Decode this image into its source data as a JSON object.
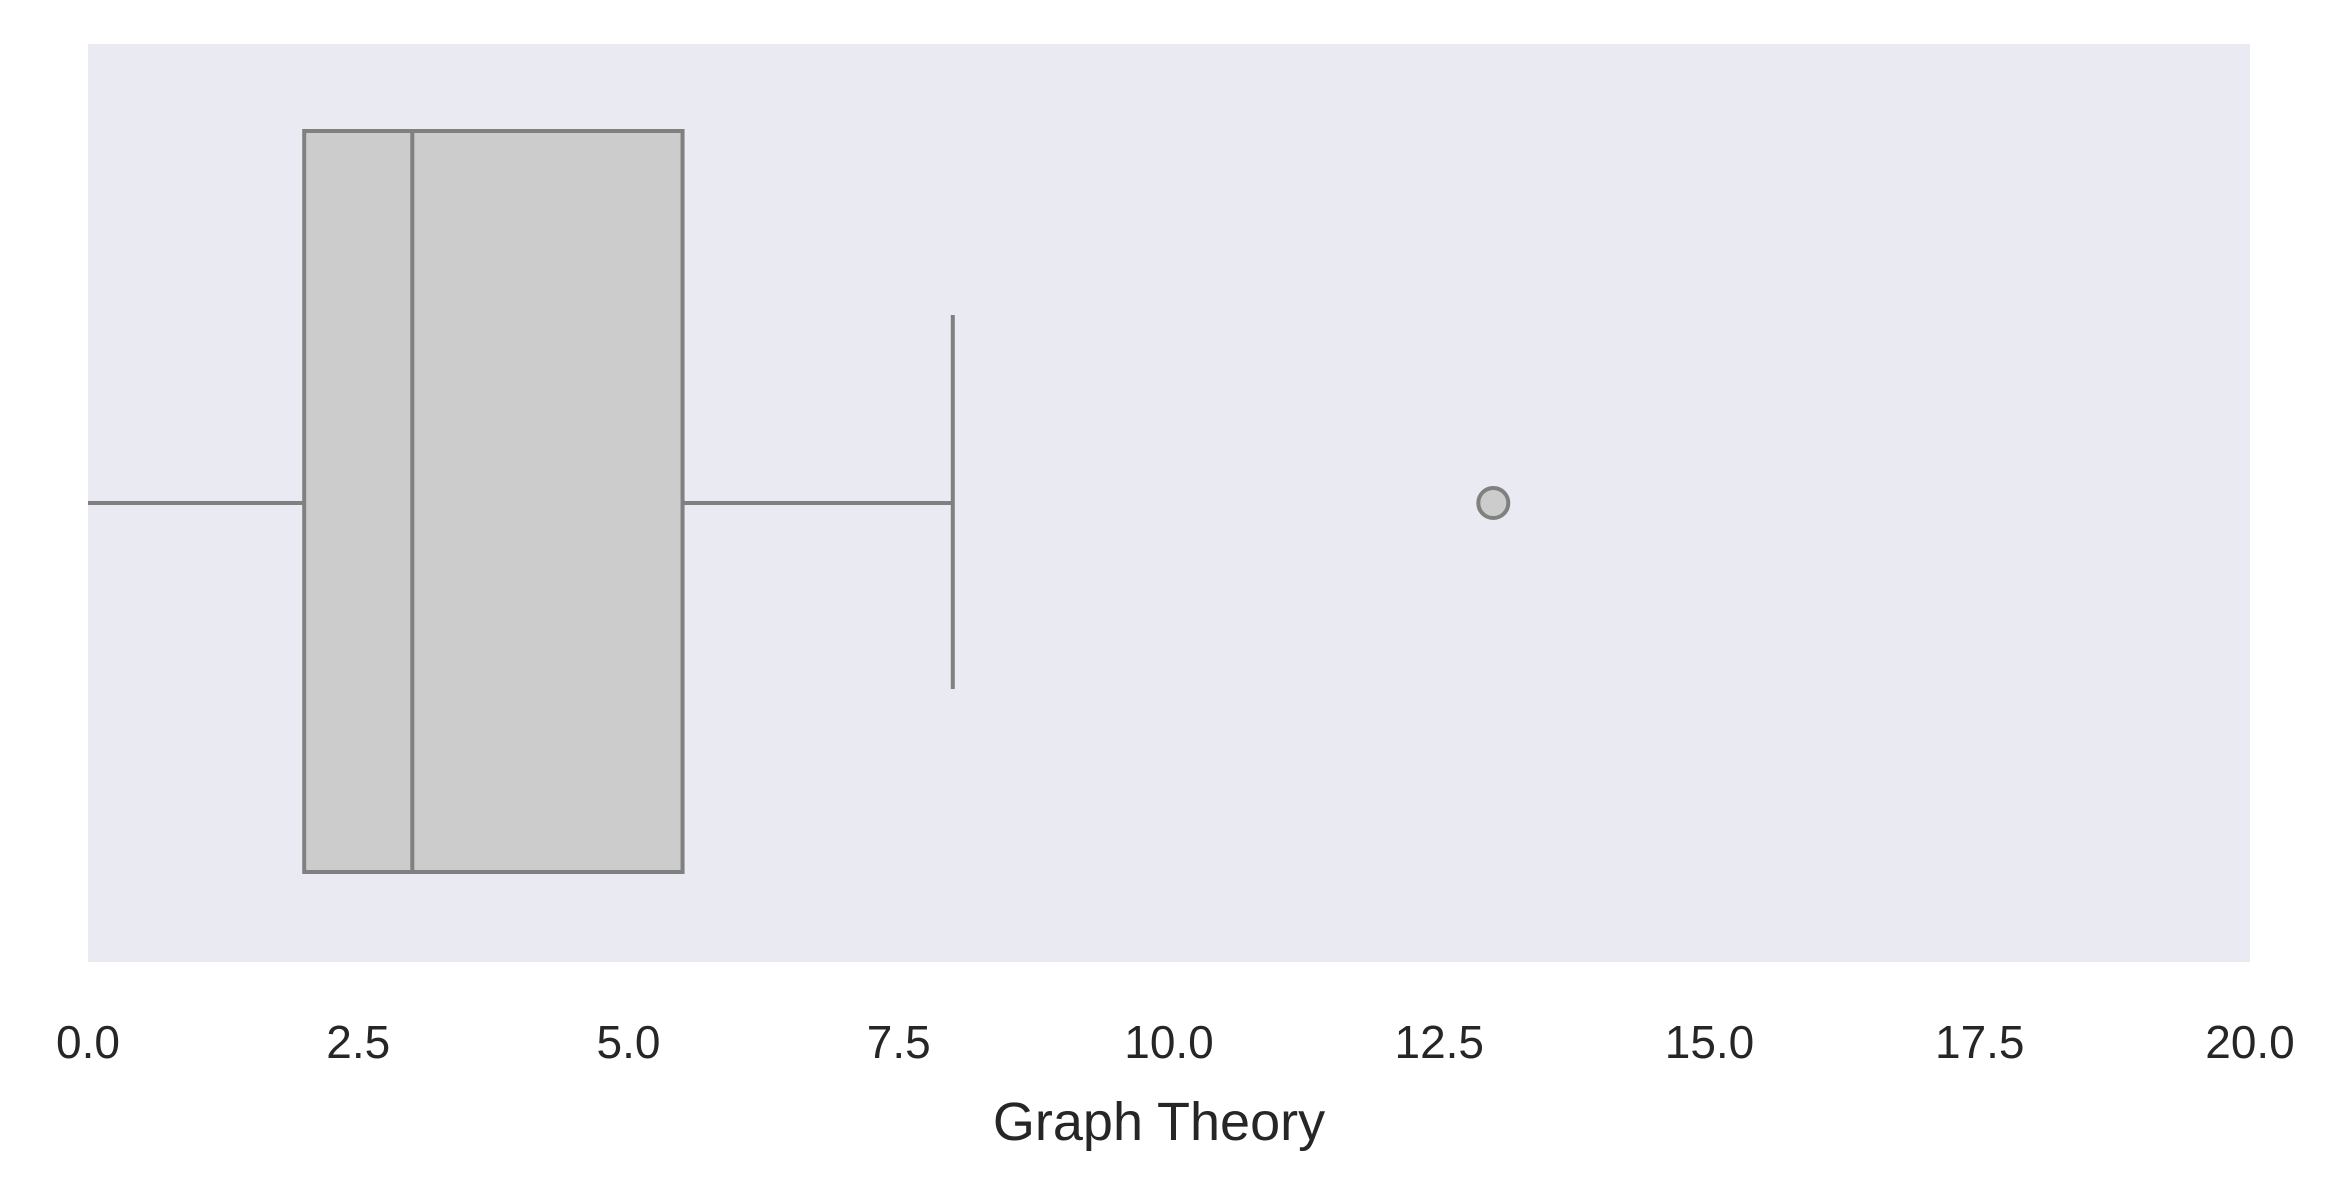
{
  "chart_data": {
    "type": "boxplot",
    "orientation": "horizontal",
    "xlabel": "Graph Theory",
    "ylabel": "",
    "title": "",
    "xlim": [
      0,
      20
    ],
    "xticks": [
      0,
      2.5,
      5,
      7.5,
      10,
      12.5,
      15,
      17.5,
      20
    ],
    "xtick_labels": [
      "0.0",
      "2.5",
      "5.0",
      "7.5",
      "10.0",
      "12.5",
      "15.0",
      "17.5",
      "20.0"
    ],
    "grid": false,
    "box": {
      "whisker_low": 0,
      "q1": 2,
      "median": 3,
      "q3": 5.5,
      "whisker_high": 8,
      "outliers": [
        13
      ]
    },
    "colors": {
      "plot_background": "#eaeaf2",
      "box_fill": "#cccccc",
      "line": "#808080",
      "text": "#262626"
    }
  }
}
